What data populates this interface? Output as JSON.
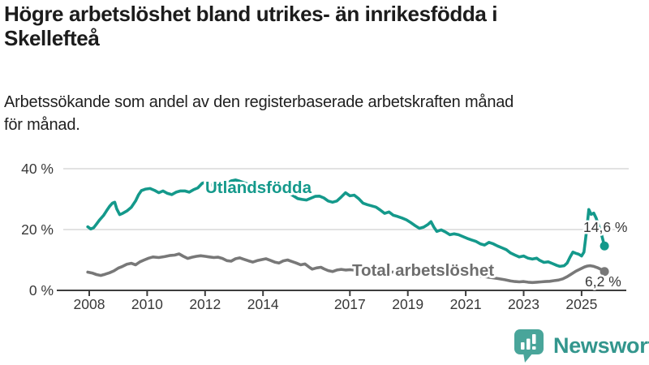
{
  "header": {
    "title": "Högre arbetslöshet bland utrikes- än inrikesfödda i Skellefteå",
    "title_lines": [
      "Högre arbetslöshet bland utrikes- än inrikesfödda i",
      "Skellefteå"
    ],
    "subtitle": "Arbetssökande som andel av den registerbaserade arbetskraften månad för månad.",
    "subtitle_lines": [
      "Arbetssökande som andel av den registerbaserade arbetskraften månad",
      "för månad."
    ]
  },
  "chart_data": {
    "type": "line",
    "title": "Högre arbetslöshet bland utrikes- än inrikesfödda i Skellefteå",
    "subtitle": "Arbetssökande som andel av den registerbaserade arbetskraften månad för månad.",
    "unit": "%",
    "xlim": [
      2007.9,
      2026.3
    ],
    "ylim": [
      0,
      42
    ],
    "grid": "horizontal",
    "legend_position": "inline-labels",
    "y_ticks": [
      {
        "label": "40 %",
        "value": 40
      },
      {
        "label": "20 %",
        "value": 20
      },
      {
        "label": "0 %",
        "value": 0
      }
    ],
    "x_ticks": [
      {
        "label": "2008",
        "year": 2008
      },
      {
        "label": "2010",
        "year": 2010
      },
      {
        "label": "2012",
        "year": 2012
      },
      {
        "label": "2014",
        "year": 2014
      },
      {
        "label": "2017",
        "year": 2017
      },
      {
        "label": "2019",
        "year": 2019
      },
      {
        "label": "2021",
        "year": 2021
      },
      {
        "label": "2023",
        "year": 2023
      },
      {
        "label": "2025",
        "year": 2025
      }
    ],
    "series": [
      {
        "name": "Utlandsfödda",
        "color": "#14998b",
        "end_label": "14,6 %",
        "end_value": 14.6,
        "points": [
          [
            2007.95,
            20.9
          ],
          [
            2008.05,
            20.2
          ],
          [
            2008.15,
            20.6
          ],
          [
            2008.25,
            21.8
          ],
          [
            2008.35,
            23.1
          ],
          [
            2008.5,
            24.7
          ],
          [
            2008.6,
            26.2
          ],
          [
            2008.7,
            27.6
          ],
          [
            2008.8,
            28.7
          ],
          [
            2008.88,
            29.0
          ],
          [
            2008.95,
            26.8
          ],
          [
            2009.05,
            24.9
          ],
          [
            2009.15,
            25.3
          ],
          [
            2009.3,
            26.1
          ],
          [
            2009.45,
            27.3
          ],
          [
            2009.6,
            29.4
          ],
          [
            2009.7,
            31.4
          ],
          [
            2009.8,
            32.8
          ],
          [
            2009.95,
            33.3
          ],
          [
            2010.1,
            33.5
          ],
          [
            2010.25,
            32.9
          ],
          [
            2010.4,
            32.1
          ],
          [
            2010.55,
            32.7
          ],
          [
            2010.7,
            31.9
          ],
          [
            2010.85,
            31.5
          ],
          [
            2011.0,
            32.3
          ],
          [
            2011.15,
            32.7
          ],
          [
            2011.3,
            32.7
          ],
          [
            2011.45,
            32.3
          ],
          [
            2011.6,
            33.1
          ],
          [
            2011.75,
            33.7
          ],
          [
            2011.9,
            35.2
          ],
          [
            2012.0,
            35.5
          ],
          [
            2012.15,
            34.9
          ],
          [
            2012.3,
            34.3
          ],
          [
            2012.45,
            33.9
          ],
          [
            2012.6,
            34.3
          ],
          [
            2012.75,
            35.1
          ],
          [
            2012.9,
            36.0
          ],
          [
            2013.05,
            36.3
          ],
          [
            2013.2,
            35.9
          ],
          [
            2013.35,
            35.4
          ],
          [
            2013.5,
            34.9
          ],
          [
            2013.65,
            34.5
          ],
          [
            2013.8,
            34.1
          ],
          [
            2013.95,
            33.8
          ],
          [
            2014.1,
            34.0
          ],
          [
            2014.25,
            33.7
          ],
          [
            2014.4,
            33.3
          ],
          [
            2014.55,
            33.0
          ],
          [
            2014.7,
            32.6
          ],
          [
            2014.85,
            32.1
          ],
          [
            2015.0,
            31.4
          ],
          [
            2015.2,
            30.2
          ],
          [
            2015.35,
            29.9
          ],
          [
            2015.5,
            29.7
          ],
          [
            2015.65,
            30.3
          ],
          [
            2015.8,
            30.9
          ],
          [
            2015.95,
            31.0
          ],
          [
            2016.1,
            30.4
          ],
          [
            2016.25,
            29.4
          ],
          [
            2016.4,
            29.0
          ],
          [
            2016.55,
            29.4
          ],
          [
            2016.7,
            30.7
          ],
          [
            2016.85,
            32.1
          ],
          [
            2017.0,
            31.1
          ],
          [
            2017.15,
            31.3
          ],
          [
            2017.3,
            30.2
          ],
          [
            2017.45,
            28.7
          ],
          [
            2017.6,
            28.2
          ],
          [
            2017.75,
            27.8
          ],
          [
            2017.9,
            27.4
          ],
          [
            2018.05,
            26.4
          ],
          [
            2018.2,
            25.3
          ],
          [
            2018.35,
            25.8
          ],
          [
            2018.5,
            24.7
          ],
          [
            2018.65,
            24.3
          ],
          [
            2018.8,
            23.8
          ],
          [
            2018.95,
            23.2
          ],
          [
            2019.1,
            22.3
          ],
          [
            2019.25,
            21.3
          ],
          [
            2019.4,
            20.4
          ],
          [
            2019.55,
            20.8
          ],
          [
            2019.7,
            21.7
          ],
          [
            2019.8,
            22.6
          ],
          [
            2019.9,
            20.8
          ],
          [
            2020.0,
            19.4
          ],
          [
            2020.15,
            19.9
          ],
          [
            2020.3,
            19.2
          ],
          [
            2020.45,
            18.3
          ],
          [
            2020.6,
            18.6
          ],
          [
            2020.75,
            18.3
          ],
          [
            2020.9,
            17.7
          ],
          [
            2021.05,
            17.1
          ],
          [
            2021.2,
            16.6
          ],
          [
            2021.35,
            16.1
          ],
          [
            2021.5,
            15.3
          ],
          [
            2021.65,
            14.9
          ],
          [
            2021.8,
            15.8
          ],
          [
            2021.95,
            15.3
          ],
          [
            2022.1,
            14.6
          ],
          [
            2022.25,
            14.0
          ],
          [
            2022.4,
            13.4
          ],
          [
            2022.55,
            12.3
          ],
          [
            2022.7,
            11.6
          ],
          [
            2022.85,
            11.0
          ],
          [
            2023.0,
            11.3
          ],
          [
            2023.15,
            10.6
          ],
          [
            2023.3,
            10.3
          ],
          [
            2023.45,
            10.6
          ],
          [
            2023.55,
            9.9
          ],
          [
            2023.7,
            9.2
          ],
          [
            2023.85,
            9.4
          ],
          [
            2024.0,
            8.8
          ],
          [
            2024.15,
            8.2
          ],
          [
            2024.25,
            7.9
          ],
          [
            2024.4,
            8.1
          ],
          [
            2024.5,
            9.0
          ],
          [
            2024.6,
            10.9
          ],
          [
            2024.7,
            12.6
          ],
          [
            2024.8,
            12.2
          ],
          [
            2024.9,
            11.9
          ],
          [
            2025.0,
            11.3
          ],
          [
            2025.08,
            12.6
          ],
          [
            2025.17,
            19.5
          ],
          [
            2025.25,
            26.6
          ],
          [
            2025.33,
            25.0
          ],
          [
            2025.42,
            25.4
          ],
          [
            2025.5,
            23.8
          ],
          [
            2025.58,
            21.5
          ],
          [
            2025.67,
            19.0
          ],
          [
            2025.73,
            16.8
          ],
          [
            2025.79,
            14.6
          ]
        ]
      },
      {
        "name": "Total arbetslöshet",
        "color": "#787878",
        "label_color": "#6e6e6e",
        "end_label": "6,2 %",
        "end_value": 6.2,
        "points": [
          [
            2007.95,
            6.0
          ],
          [
            2008.1,
            5.7
          ],
          [
            2008.25,
            5.2
          ],
          [
            2008.4,
            4.9
          ],
          [
            2008.55,
            5.3
          ],
          [
            2008.7,
            5.8
          ],
          [
            2008.85,
            6.4
          ],
          [
            2009.0,
            7.3
          ],
          [
            2009.15,
            7.9
          ],
          [
            2009.3,
            8.6
          ],
          [
            2009.45,
            8.9
          ],
          [
            2009.6,
            8.4
          ],
          [
            2009.75,
            9.4
          ],
          [
            2009.9,
            10.0
          ],
          [
            2010.05,
            10.6
          ],
          [
            2010.2,
            11.0
          ],
          [
            2010.4,
            10.8
          ],
          [
            2010.6,
            11.1
          ],
          [
            2010.8,
            11.5
          ],
          [
            2010.95,
            11.6
          ],
          [
            2011.1,
            12.0
          ],
          [
            2011.25,
            11.2
          ],
          [
            2011.4,
            10.5
          ],
          [
            2011.55,
            10.9
          ],
          [
            2011.7,
            11.2
          ],
          [
            2011.85,
            11.4
          ],
          [
            2012.0,
            11.2
          ],
          [
            2012.15,
            11.0
          ],
          [
            2012.3,
            10.8
          ],
          [
            2012.45,
            10.9
          ],
          [
            2012.6,
            10.5
          ],
          [
            2012.75,
            9.8
          ],
          [
            2012.9,
            9.6
          ],
          [
            2013.05,
            10.4
          ],
          [
            2013.2,
            10.7
          ],
          [
            2013.35,
            10.2
          ],
          [
            2013.5,
            9.7
          ],
          [
            2013.65,
            9.3
          ],
          [
            2013.8,
            9.8
          ],
          [
            2013.95,
            10.1
          ],
          [
            2014.1,
            10.4
          ],
          [
            2014.25,
            9.9
          ],
          [
            2014.4,
            9.3
          ],
          [
            2014.55,
            9.0
          ],
          [
            2014.7,
            9.7
          ],
          [
            2014.85,
            10.0
          ],
          [
            2015.0,
            9.5
          ],
          [
            2015.15,
            9.0
          ],
          [
            2015.3,
            8.4
          ],
          [
            2015.45,
            8.7
          ],
          [
            2015.6,
            7.6
          ],
          [
            2015.7,
            7.0
          ],
          [
            2015.85,
            7.4
          ],
          [
            2016.0,
            7.6
          ],
          [
            2016.1,
            7.1
          ],
          [
            2016.25,
            6.5
          ],
          [
            2016.4,
            6.2
          ],
          [
            2016.55,
            6.7
          ],
          [
            2016.7,
            6.9
          ],
          [
            2016.85,
            6.7
          ],
          [
            2017.0,
            6.8
          ],
          [
            2017.3,
            6.6
          ],
          [
            2017.6,
            6.4
          ],
          [
            2017.9,
            6.3
          ],
          [
            2018.2,
            6.1
          ],
          [
            2018.5,
            6.0
          ],
          [
            2018.8,
            5.9
          ],
          [
            2019.1,
            5.8
          ],
          [
            2019.4,
            5.7
          ],
          [
            2019.7,
            5.6
          ],
          [
            2020.0,
            5.9
          ],
          [
            2020.3,
            6.1
          ],
          [
            2020.6,
            6.0
          ],
          [
            2020.9,
            5.6
          ],
          [
            2021.2,
            5.2
          ],
          [
            2021.5,
            4.7
          ],
          [
            2021.8,
            4.3
          ],
          [
            2022.1,
            3.9
          ],
          [
            2022.35,
            3.5
          ],
          [
            2022.55,
            3.1
          ],
          [
            2022.7,
            2.9
          ],
          [
            2022.85,
            2.8
          ],
          [
            2023.0,
            2.9
          ],
          [
            2023.15,
            2.7
          ],
          [
            2023.3,
            2.6
          ],
          [
            2023.45,
            2.7
          ],
          [
            2023.6,
            2.8
          ],
          [
            2023.75,
            2.9
          ],
          [
            2023.9,
            3.0
          ],
          [
            2024.05,
            3.2
          ],
          [
            2024.2,
            3.4
          ],
          [
            2024.35,
            3.8
          ],
          [
            2024.5,
            4.5
          ],
          [
            2024.65,
            5.4
          ],
          [
            2024.8,
            6.3
          ],
          [
            2024.95,
            7.0
          ],
          [
            2025.1,
            7.7
          ],
          [
            2025.2,
            8.0
          ],
          [
            2025.3,
            8.1
          ],
          [
            2025.42,
            7.9
          ],
          [
            2025.54,
            7.5
          ],
          [
            2025.65,
            7.0
          ],
          [
            2025.72,
            6.6
          ],
          [
            2025.79,
            6.2
          ]
        ]
      }
    ],
    "colors": {
      "grid": "#d9d9d9",
      "axis": "#3d3d3d",
      "tick_label": "#383838",
      "annotation": "#383838"
    }
  },
  "branding": {
    "logo_text": "Newsworthy",
    "logo_text_color": "#33968d",
    "badge_color": "#49a59a"
  }
}
